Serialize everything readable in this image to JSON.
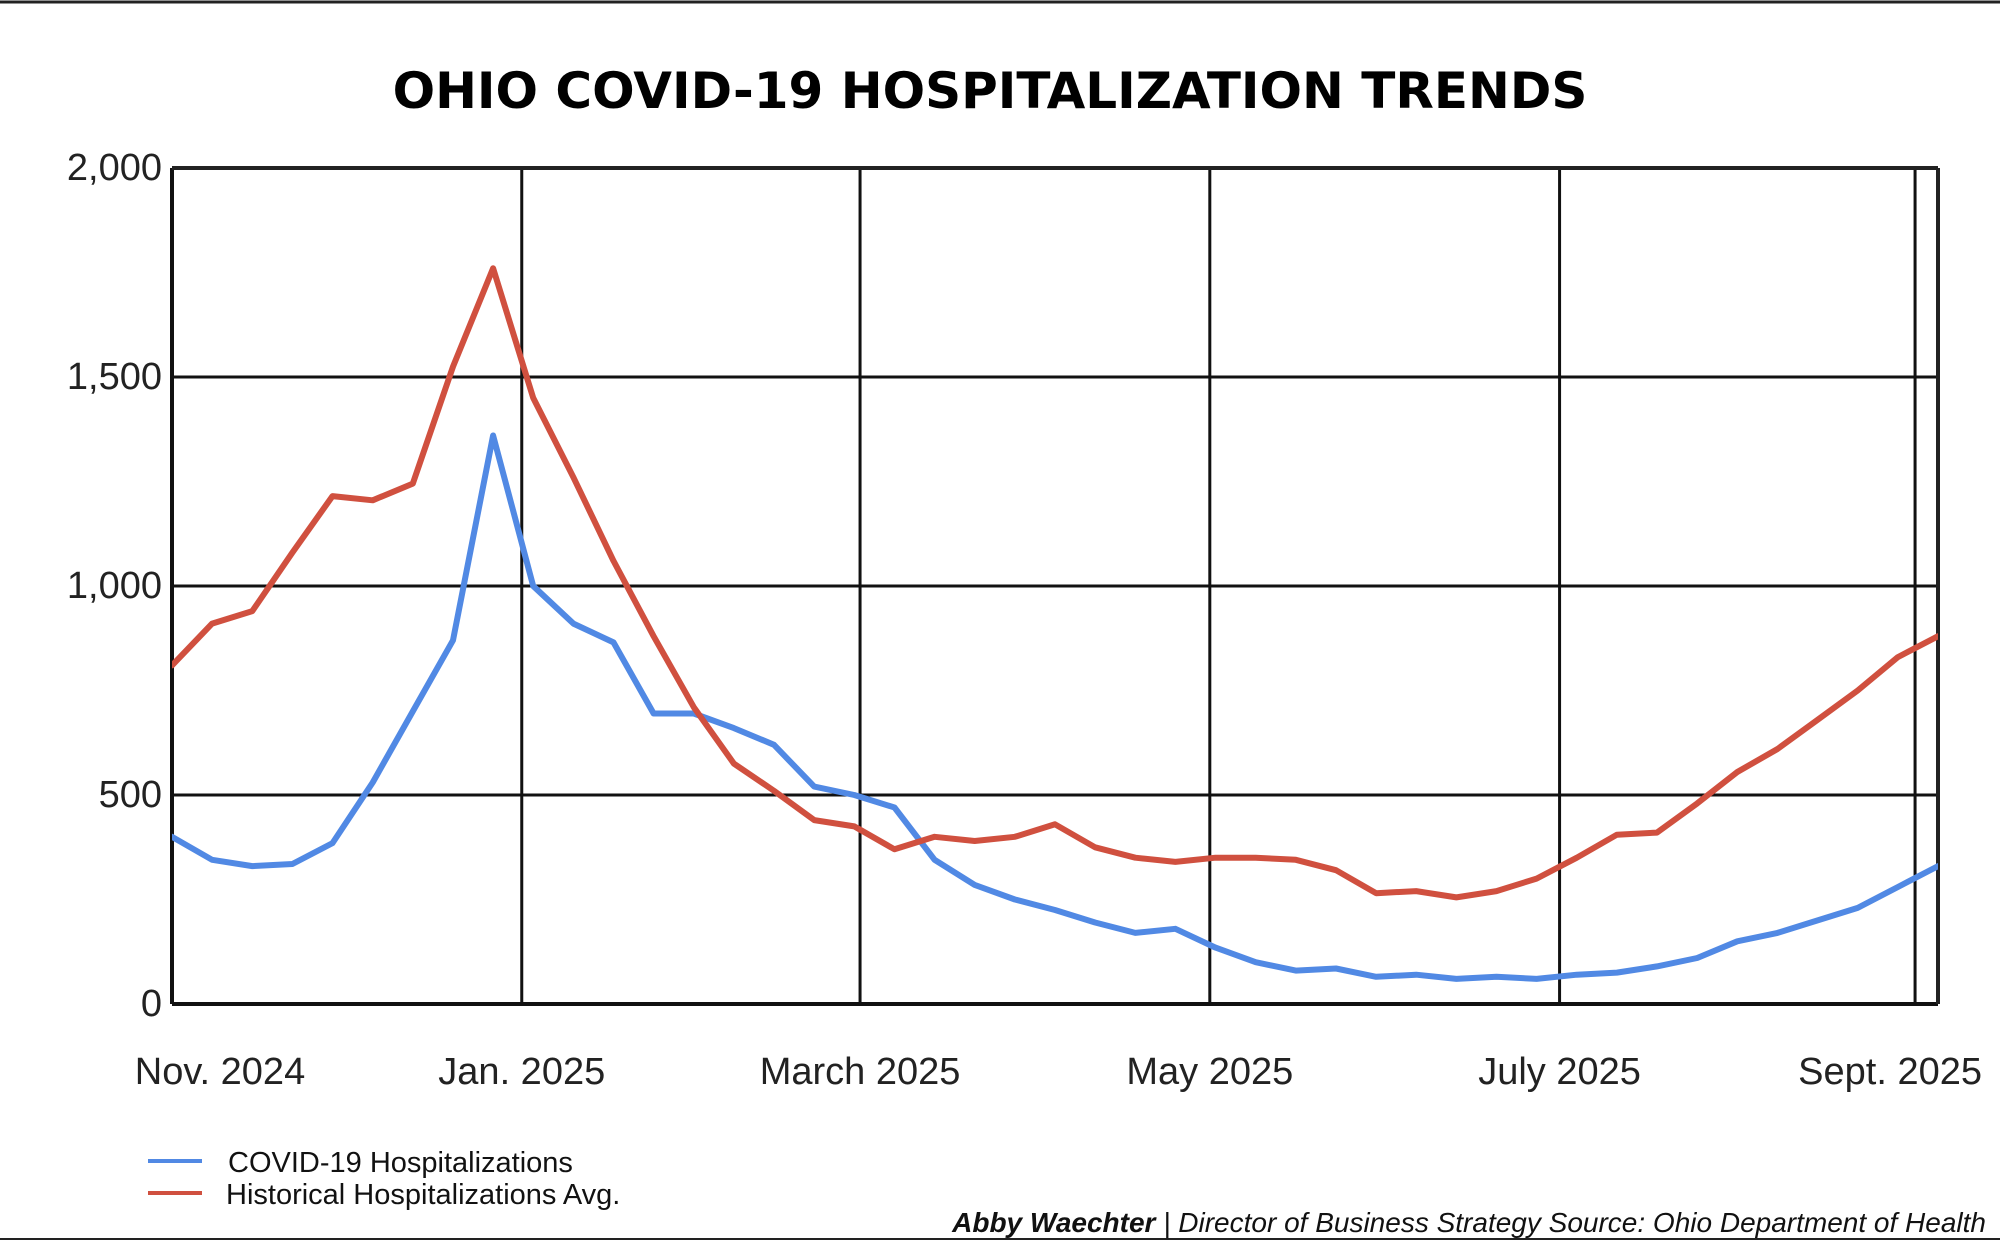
{
  "chart_data": {
    "type": "line",
    "title": "OHIO COVID-19 HOSPITALIZATION TRENDS",
    "xlabel": "",
    "ylabel": "",
    "ylim": [
      0,
      2000
    ],
    "y_ticks": [
      "2,000",
      "1,500",
      "1,000",
      "500",
      "0"
    ],
    "y_tick_values": [
      2000,
      1500,
      1000,
      500,
      0
    ],
    "x_ticks": [
      "Nov. 2024",
      "Jan. 2025",
      "March 2025",
      "May 2025",
      "July 2025",
      "Sept. 2025"
    ],
    "x_tick_dates": [
      "2024-11-01",
      "2025-01-01",
      "2025-03-01",
      "2025-05-01",
      "2025-07-01",
      "2025-09-01"
    ],
    "xlim": [
      "2024-11-01",
      "2025-09-05"
    ],
    "x": [
      "2024-11-01",
      "2024-11-08",
      "2024-11-15",
      "2024-11-22",
      "2024-11-29",
      "2024-12-06",
      "2024-12-13",
      "2024-12-20",
      "2024-12-27",
      "2025-01-03",
      "2025-01-10",
      "2025-01-17",
      "2025-01-24",
      "2025-01-31",
      "2025-02-07",
      "2025-02-14",
      "2025-02-21",
      "2025-02-28",
      "2025-03-07",
      "2025-03-14",
      "2025-03-21",
      "2025-03-28",
      "2025-04-04",
      "2025-04-11",
      "2025-04-18",
      "2025-04-25",
      "2025-05-02",
      "2025-05-09",
      "2025-05-16",
      "2025-05-23",
      "2025-05-30",
      "2025-06-06",
      "2025-06-13",
      "2025-06-20",
      "2025-06-27",
      "2025-07-04",
      "2025-07-11",
      "2025-07-18",
      "2025-07-25",
      "2025-08-01",
      "2025-08-08",
      "2025-08-15",
      "2025-08-22",
      "2025-08-29",
      "2025-09-05"
    ],
    "series": [
      {
        "name": "COVID-19 Hospitalizations",
        "color": "#5189e4",
        "values": [
          400,
          345,
          330,
          335,
          385,
          530,
          700,
          870,
          1360,
          1000,
          910,
          865,
          695,
          695,
          660,
          620,
          520,
          500,
          470,
          345,
          285,
          250,
          225,
          195,
          170,
          180,
          135,
          100,
          80,
          85,
          65,
          70,
          60,
          65,
          60,
          70,
          75,
          90,
          110,
          150,
          170,
          200,
          230,
          280,
          330
        ]
      },
      {
        "name": "Historical Hospitalizations Avg.",
        "color": "#d0503f",
        "values": [
          810,
          910,
          940,
          1080,
          1215,
          1205,
          1245,
          1525,
          1760,
          1450,
          1260,
          1060,
          880,
          710,
          575,
          510,
          440,
          425,
          370,
          400,
          390,
          400,
          430,
          375,
          350,
          340,
          350,
          350,
          345,
          320,
          265,
          270,
          255,
          270,
          300,
          350,
          405,
          410,
          480,
          555,
          610,
          680,
          750,
          830,
          880
        ]
      }
    ]
  },
  "legend": {
    "items": [
      {
        "label": "COVID-19 Hospitalizations",
        "color": "#5189e4"
      },
      {
        "label": "Historical Hospitalizations Avg.",
        "color": "#d0503f"
      }
    ]
  },
  "credit": {
    "name": "Abby Waechter",
    "text": " | Director of Business Strategy Source: Ohio Department of Health"
  },
  "colors": {
    "grid": "#111111",
    "axis": "#111111",
    "frame": "#222222"
  }
}
